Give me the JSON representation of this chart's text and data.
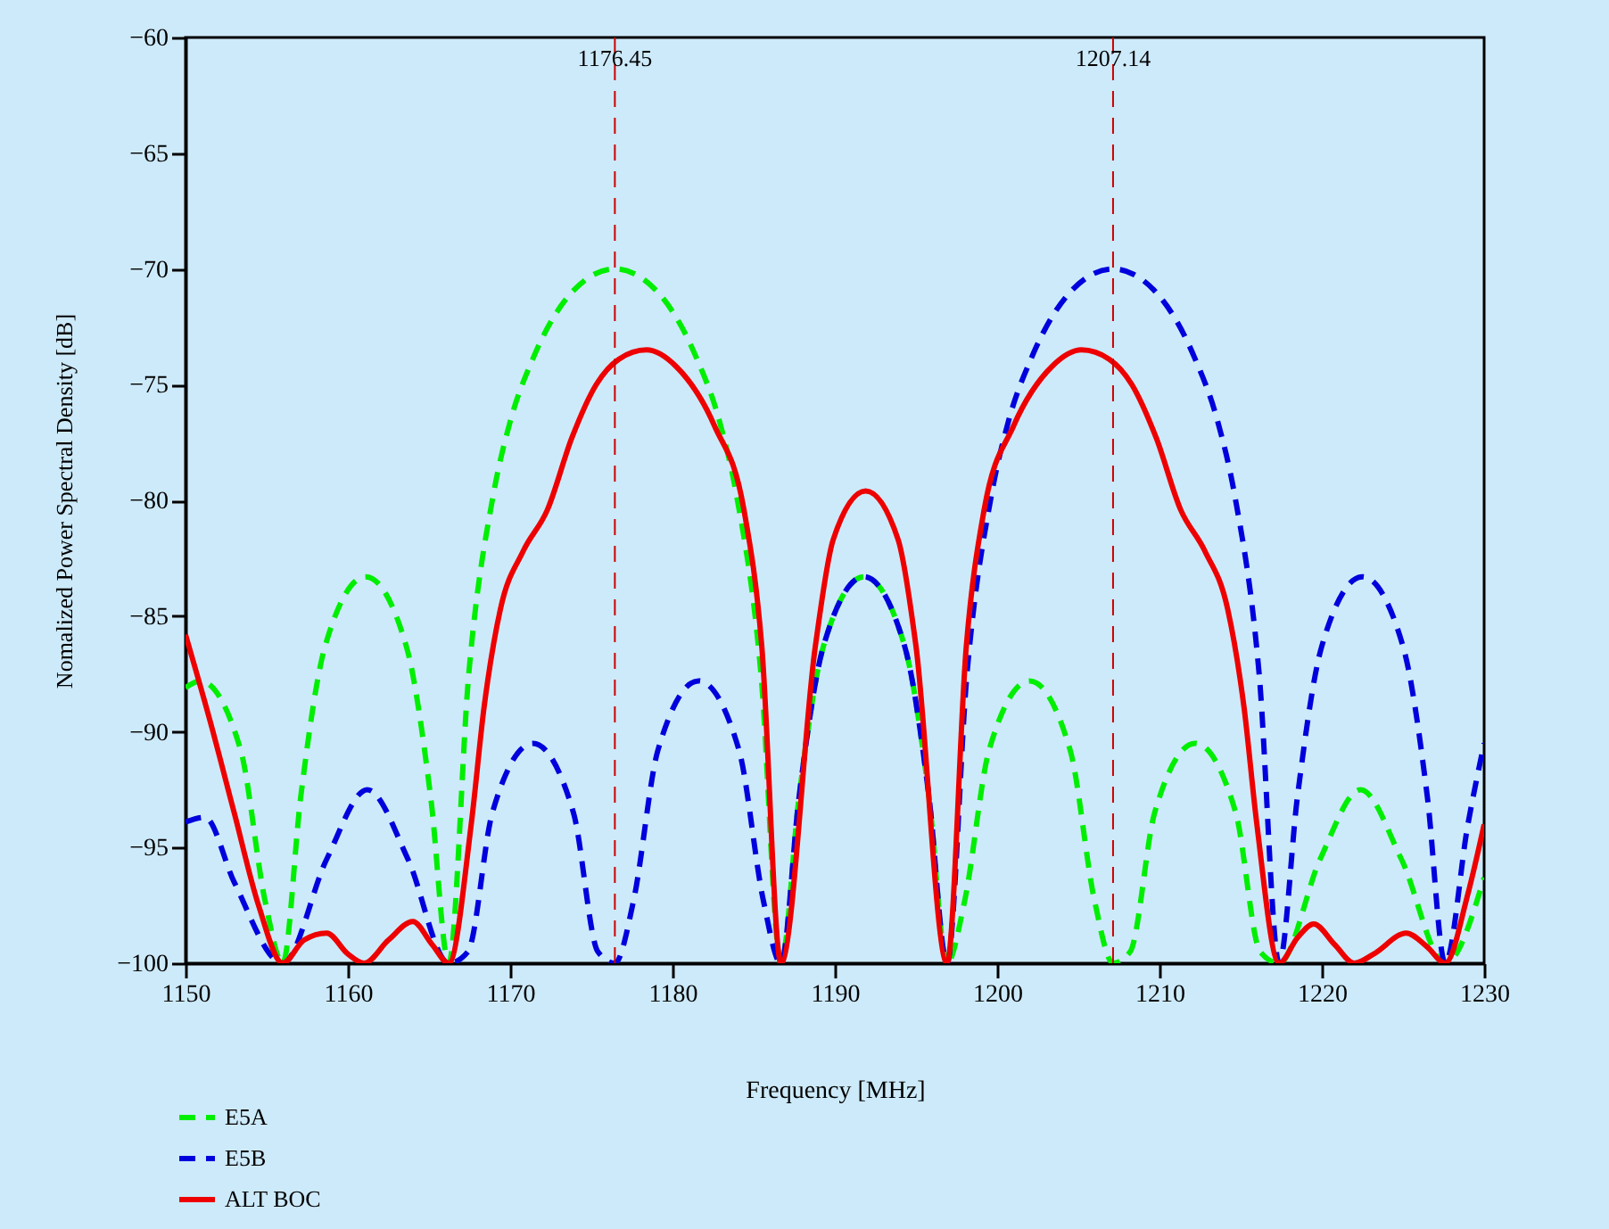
{
  "chart_data": {
    "type": "line",
    "xlabel": "Frequency [MHz]",
    "ylabel": "Nomalized Power Spectral Density [dB]",
    "xlim": [
      1150,
      1230
    ],
    "ylim": [
      -100,
      -60
    ],
    "xticks": [
      1150,
      1160,
      1170,
      1180,
      1190,
      1200,
      1210,
      1220,
      1230
    ],
    "yticks": [
      -60,
      -65,
      -70,
      -75,
      -80,
      -85,
      -90,
      -95,
      -100
    ],
    "grid": false,
    "legend": "bottom left",
    "ref_lines": [
      {
        "axis": "x",
        "value": 1176.45,
        "label": "1176.45",
        "color": "#cc0000",
        "line_style": "dashed"
      },
      {
        "axis": "x",
        "value": 1207.14,
        "label": "1207.14",
        "color": "#cc0000",
        "line_style": "dashed"
      }
    ],
    "series": [
      {
        "name": "E5A",
        "color": "#00ee00",
        "line_style": "dashed",
        "x": [
          1150,
          1150.9,
          1153.4,
          1154.9,
          1155.99,
          1157.1,
          1158.6,
          1161.1,
          1163.6,
          1165.1,
          1166.22,
          1167.45,
          1168.95,
          1170,
          1171.45,
          1173.95,
          1176.45,
          1178.95,
          1181.45,
          1182.9,
          1183.95,
          1185.45,
          1186.68,
          1187.8,
          1189.3,
          1191.8,
          1194.3,
          1195.8,
          1196.91,
          1198,
          1199.5,
          1202,
          1204.5,
          1206,
          1207.14,
          1208.2,
          1209.7,
          1212.2,
          1214.7,
          1216.2,
          1217.37,
          1219.9,
          1222.4,
          1224.9,
          1227.6,
          1230
        ],
        "values": [
          -88.1,
          -87.8,
          -90.8,
          -97.3,
          -100,
          -92.8,
          -86.3,
          -83.3,
          -86.3,
          -92.8,
          -100,
          -87.5,
          -79.8,
          -76.6,
          -73.8,
          -70.9,
          -70,
          -70.9,
          -73.8,
          -76.6,
          -79.8,
          -87.5,
          -100,
          -92.8,
          -86.3,
          -83.3,
          -86.3,
          -92.8,
          -100,
          -97.3,
          -90.8,
          -87.8,
          -90.8,
          -97.3,
          -100,
          -99.5,
          -93.5,
          -90.5,
          -93.5,
          -99.5,
          -100,
          -95.5,
          -92.5,
          -95.5,
          -100,
          -96.3
        ]
      },
      {
        "name": "E5B",
        "color": "#0000dd",
        "line_style": "dashed",
        "x": [
          1150,
          1151.2,
          1153,
          1155.99,
          1158.7,
          1161.2,
          1163.7,
          1166.22,
          1167.4,
          1168.9,
          1171.4,
          1173.9,
          1175.4,
          1176.45,
          1177.6,
          1179.1,
          1181.6,
          1184.1,
          1185.6,
          1186.68,
          1187.8,
          1189.3,
          1191.8,
          1194.3,
          1195.8,
          1196.91,
          1198.14,
          1199.64,
          1200.69,
          1202.14,
          1204.64,
          1207.14,
          1209.64,
          1212.14,
          1213.59,
          1214.64,
          1216.14,
          1217.37,
          1218.5,
          1220,
          1222.5,
          1225,
          1226.5,
          1227.6,
          1229,
          1230
        ],
        "values": [
          -93.9,
          -93.7,
          -96.5,
          -100,
          -95.5,
          -92.5,
          -95.5,
          -100,
          -99.5,
          -93.5,
          -90.5,
          -93.5,
          -99.5,
          -100,
          -97.3,
          -90.8,
          -87.8,
          -90.8,
          -97.3,
          -100,
          -92.8,
          -86.3,
          -83.3,
          -86.3,
          -92.8,
          -100,
          -87.5,
          -79.8,
          -76.6,
          -73.8,
          -70.9,
          -70,
          -70.9,
          -73.8,
          -76.6,
          -79.8,
          -87.5,
          -100,
          -92.8,
          -86.3,
          -83.3,
          -86.3,
          -92.8,
          -100,
          -94,
          -90.5
        ]
      },
      {
        "name": "ALT BOC",
        "color": "#ee0000",
        "line_style": "solid",
        "x": [
          1150,
          1151.5,
          1153,
          1154.5,
          1155.99,
          1157.3,
          1158.7,
          1160,
          1161,
          1162.5,
          1164,
          1165.2,
          1166.22,
          1167.6,
          1168.4,
          1169.4,
          1170.8,
          1172.3,
          1173.8,
          1175.3,
          1176.7,
          1178.4,
          1180.2,
          1182.6,
          1184.4,
          1185.5,
          1186.68,
          1188.8,
          1189.9,
          1191.9,
          1193.9,
          1195,
          1196.91,
          1198.1,
          1199.2,
          1201,
          1203.4,
          1205.2,
          1206.9,
          1208.3,
          1209.8,
          1211.3,
          1212.8,
          1214.2,
          1215.2,
          1216,
          1217.37,
          1218.5,
          1219.5,
          1220.8,
          1222,
          1223.2,
          1225.2,
          1226.5,
          1227.6,
          1229,
          1230
        ],
        "values": [
          -85.8,
          -89.5,
          -93.5,
          -97.5,
          -100,
          -99,
          -98.7,
          -99.6,
          -100,
          -99,
          -98.2,
          -99.2,
          -100,
          -94,
          -88.9,
          -84.7,
          -82.2,
          -80.4,
          -77.3,
          -75,
          -73.9,
          -73.5,
          -74.2,
          -76.8,
          -80.4,
          -86.3,
          -100,
          -86.3,
          -81.7,
          -79.6,
          -81.7,
          -86.3,
          -100,
          -86.3,
          -80.4,
          -76.8,
          -74.2,
          -73.5,
          -73.9,
          -75,
          -77.3,
          -80.4,
          -82.2,
          -84.7,
          -88.9,
          -94,
          -100,
          -98.9,
          -98.3,
          -99.2,
          -100,
          -99.6,
          -98.7,
          -99.3,
          -100,
          -97,
          -94
        ]
      }
    ]
  }
}
